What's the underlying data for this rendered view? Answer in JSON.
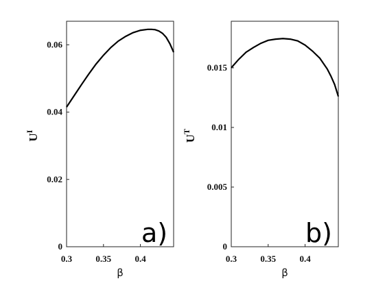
{
  "chart_data": [
    {
      "type": "line",
      "panel_label": "a)",
      "xlabel": "β",
      "ylabel": "U",
      "ylabel_sup": "I",
      "xlim": [
        0.3,
        0.445
      ],
      "ylim": [
        0,
        0.067
      ],
      "xticks": [
        "0.3",
        "0.35",
        "0.4"
      ],
      "yticks": [
        "0",
        "0.02",
        "0.04",
        "0.06"
      ],
      "series": [
        {
          "x": [
            0.3,
            0.31,
            0.32,
            0.33,
            0.34,
            0.35,
            0.36,
            0.37,
            0.38,
            0.39,
            0.4,
            0.41,
            0.415,
            0.42,
            0.425,
            0.43,
            0.435,
            0.44,
            0.445
          ],
          "y": [
            0.0415,
            0.0448,
            0.0481,
            0.0513,
            0.0543,
            0.0569,
            0.0592,
            0.0611,
            0.0625,
            0.0636,
            0.0643,
            0.0646,
            0.0646,
            0.0645,
            0.0641,
            0.0634,
            0.0622,
            0.0603,
            0.0578
          ]
        }
      ]
    },
    {
      "type": "line",
      "panel_label": "b)",
      "xlabel": "β",
      "ylabel": "U",
      "ylabel_sup": "T",
      "xlim": [
        0.3,
        0.445
      ],
      "ylim": [
        0,
        0.0189
      ],
      "xticks": [
        "0.3",
        "0.35",
        "0.4"
      ],
      "yticks": [
        "0",
        "0.005",
        "0.01",
        "0.015"
      ],
      "series": [
        {
          "x": [
            0.3,
            0.31,
            0.32,
            0.33,
            0.34,
            0.35,
            0.36,
            0.37,
            0.38,
            0.39,
            0.4,
            0.41,
            0.42,
            0.43,
            0.435,
            0.44,
            0.445
          ],
          "y": [
            0.015,
            0.0157,
            0.0163,
            0.0167,
            0.01705,
            0.0173,
            0.0174,
            0.01745,
            0.0174,
            0.01725,
            0.0169,
            0.0164,
            0.0158,
            0.0149,
            0.0143,
            0.0136,
            0.0126
          ]
        }
      ]
    }
  ]
}
